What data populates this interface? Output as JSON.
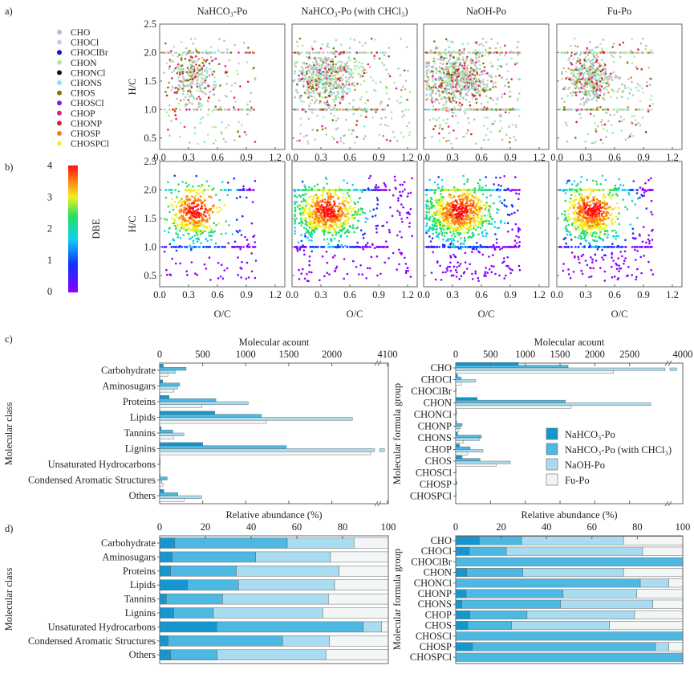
{
  "panel_labels": {
    "a": "a)",
    "b": "b)",
    "c": "c)",
    "d": "d)"
  },
  "colors": {
    "NaHCO3-Po": "#1596cf",
    "NaHCO3-Po (with CHCl3)": "#4db9e3",
    "NaOH-Po": "#a9dcf0",
    "Fu-Po": "#f3f6f6"
  },
  "chart_data": [
    {
      "type": "scatter",
      "panel": "a",
      "subplot_titles": [
        "NaHCO₃-Po",
        "NaHCO₃-Po (with CHCl₃)",
        "NaOH-Po",
        "Fu-Po"
      ],
      "xlabel": "",
      "ylabel": "H/C",
      "xlim": [
        0.0,
        1.3
      ],
      "ylim": [
        0.3,
        2.5
      ],
      "xticks": [
        "0.0",
        "0.3",
        "0.6",
        "0.9",
        "1.2"
      ],
      "yticks": [
        "0.5",
        "1.0",
        "1.5",
        "2.0",
        "2.5"
      ],
      "legend": {
        "position": "left",
        "entries": [
          {
            "name": "CHO",
            "color": "#bdbdbd"
          },
          {
            "name": "CHOCl",
            "color": "#c8c8f4"
          },
          {
            "name": "CHOClBr",
            "color": "#1010d0"
          },
          {
            "name": "CHON",
            "color": "#a8eea0"
          },
          {
            "name": "CHONCl",
            "color": "#111111"
          },
          {
            "name": "CHONS",
            "color": "#7fe8f0"
          },
          {
            "name": "CHOS",
            "color": "#7a7a10"
          },
          {
            "name": "CHOSCl",
            "color": "#8020e0"
          },
          {
            "name": "CHOP",
            "color": "#e0208a"
          },
          {
            "name": "CHONP",
            "color": "#e02020"
          },
          {
            "name": "CHOSP",
            "color": "#f08020"
          },
          {
            "name": "CHOSPCl",
            "color": "#f8f020"
          }
        ]
      }
    },
    {
      "type": "scatter",
      "panel": "b",
      "xlabel": "O/C",
      "ylabel": "H/C",
      "xlim": [
        0.0,
        1.3
      ],
      "ylim": [
        0.3,
        2.5
      ],
      "xticks": [
        "0.0",
        "0.3",
        "0.6",
        "0.9",
        "1.2"
      ],
      "yticks": [
        "0.5",
        "1.0",
        "1.5",
        "2.0",
        "2.5"
      ],
      "colorbar": {
        "label": "DBE",
        "range": [
          0,
          4
        ],
        "ticks": [
          "4",
          "3",
          "2",
          "1",
          "0"
        ]
      }
    },
    {
      "type": "bar",
      "panel": "c-left",
      "orientation": "horizontal",
      "xlabel": "Molecular acount",
      "ylabel": "Molecular class",
      "xticks": [
        "0",
        "500",
        "1000",
        "1500",
        "2000",
        "4100"
      ],
      "axis_break": [
        2500,
        3700
      ],
      "categories": [
        "Carbohydrate",
        "Aminosugars",
        "Proteins",
        "Lipids",
        "Tannins",
        "Lignins",
        "Unsaturated Hydrocarbons",
        "Condensed Aromatic Structures",
        "Others"
      ],
      "series": [
        {
          "name": "NaHCO₃-Po",
          "values": [
            43,
            34,
            110,
            641,
            18,
            500,
            5,
            3,
            48
          ]
        },
        {
          "name": "NaHCO₃-Po (with CHCl₃)",
          "values": [
            307,
            233,
            653,
            1181,
            153,
            1472,
            8,
            88,
            212
          ]
        },
        {
          "name": "NaOH-Po",
          "values": [
            181,
            209,
            1028,
            2240,
            282,
            3950,
            3,
            25,
            487
          ]
        },
        {
          "name": "Fu-Po",
          "values": [
            95,
            163,
            491,
            1239,
            163,
            2450,
            2,
            40,
            282
          ]
        }
      ]
    },
    {
      "type": "bar",
      "panel": "c-right",
      "orientation": "horizontal",
      "xlabel": "Molecular acount",
      "ylabel": "Molecular formula group",
      "xticks": [
        "0",
        "500",
        "1000",
        "1500",
        "2000",
        "2500",
        "4000"
      ],
      "axis_break": [
        3000,
        3700
      ],
      "legend_position": "right",
      "categories": [
        "CHO",
        "CHOCl",
        "CHOClBr",
        "CHON",
        "CHONCl",
        "CHONP",
        "CHONS",
        "CHOP",
        "CHOS",
        "CHOSCl",
        "CHOSP",
        "CHOSPCl"
      ],
      "series": [
        {
          "name": "NaHCO₃-Po",
          "values": [
            900,
            27,
            0,
            308,
            1,
            12,
            27,
            54,
            92,
            0,
            2,
            0
          ]
        },
        {
          "name": "NaHCO₃-Po (with CHCl₃)",
          "values": [
            1615,
            77,
            2,
            1577,
            15,
            92,
            369,
            208,
            350,
            2,
            20,
            1
          ]
        },
        {
          "name": "NaOH-Po",
          "values": [
            3850,
            288,
            0,
            2804,
            5,
            65,
            346,
            392,
            785,
            0,
            0,
            0
          ]
        },
        {
          "name": "Fu-Po",
          "values": [
            2270,
            85,
            0,
            1662,
            3,
            46,
            112,
            173,
            585,
            0,
            0,
            0
          ]
        }
      ]
    },
    {
      "type": "bar",
      "panel": "d-left",
      "orientation": "horizontal",
      "stacked": true,
      "xlabel": "Relative abundance (%)",
      "ylabel": "Molecular class",
      "xlim": [
        0,
        100
      ],
      "xticks": [
        "0",
        "20",
        "40",
        "60",
        "80",
        "100"
      ],
      "categories": [
        "Carbohydrate",
        "Aminosugars",
        "Proteins",
        "Lipids",
        "Tannins",
        "Lignins",
        "Unsaturated Hydrocarbons",
        "Condensed Aromatic Structures",
        "Others"
      ],
      "series": [
        {
          "name": "NaHCO₃-Po",
          "values": [
            6.6,
            5.5,
            4.8,
            12.2,
            2.9,
            6.2,
            25.0,
            3.7,
            4.8
          ]
        },
        {
          "name": "NaHCO₃-Po (with CHCl₃)",
          "values": [
            49.2,
            36.5,
            28.7,
            22.3,
            24.6,
            17.3,
            64.0,
            50.1,
            20.4
          ]
        },
        {
          "name": "NaOH-Po",
          "values": [
            29.2,
            32.7,
            45.0,
            42.0,
            46.3,
            47.8,
            8.0,
            20.4,
            47.5
          ]
        },
        {
          "name": "Fu-Po",
          "values": [
            15.0,
            25.3,
            21.5,
            23.5,
            26.2,
            28.7,
            3.0,
            25.8,
            27.3
          ]
        }
      ]
    },
    {
      "type": "bar",
      "panel": "d-right",
      "orientation": "horizontal",
      "stacked": true,
      "xlabel": "Relative abundance (%)",
      "ylabel": "Molecular formula group",
      "xlim": [
        0,
        100
      ],
      "xticks": [
        "0",
        "20",
        "40",
        "60",
        "80",
        "100"
      ],
      "categories": [
        "CHO",
        "CHOCl",
        "CHOClBr",
        "CHON",
        "CHONCl",
        "CHONP",
        "CHONS",
        "CHOP",
        "CHOS",
        "CHOSCl",
        "CHOSP",
        "CHOSPCl"
      ],
      "series": [
        {
          "name": "NaHCO₃-Po",
          "values": [
            10.4,
            6.0,
            0,
            4.9,
            0,
            4.6,
            2.7,
            6.2,
            5.3,
            0,
            7.4,
            0
          ]
        },
        {
          "name": "NaHCO₃-Po (with CHCl₃)",
          "values": [
            18.6,
            16.3,
            100,
            24.7,
            81.3,
            42.7,
            43.5,
            25.2,
            19.3,
            100,
            80.6,
            100
          ]
        },
        {
          "name": "NaOH-Po",
          "values": [
            44.9,
            60.0,
            0,
            44.3,
            12.6,
            32.4,
            40.6,
            47.4,
            43.1,
            0,
            5.9,
            0
          ]
        },
        {
          "name": "Fu-Po",
          "values": [
            26.1,
            17.7,
            0,
            26.1,
            6.1,
            20.3,
            13.2,
            21.2,
            32.3,
            0,
            6.1,
            0
          ]
        }
      ]
    }
  ]
}
